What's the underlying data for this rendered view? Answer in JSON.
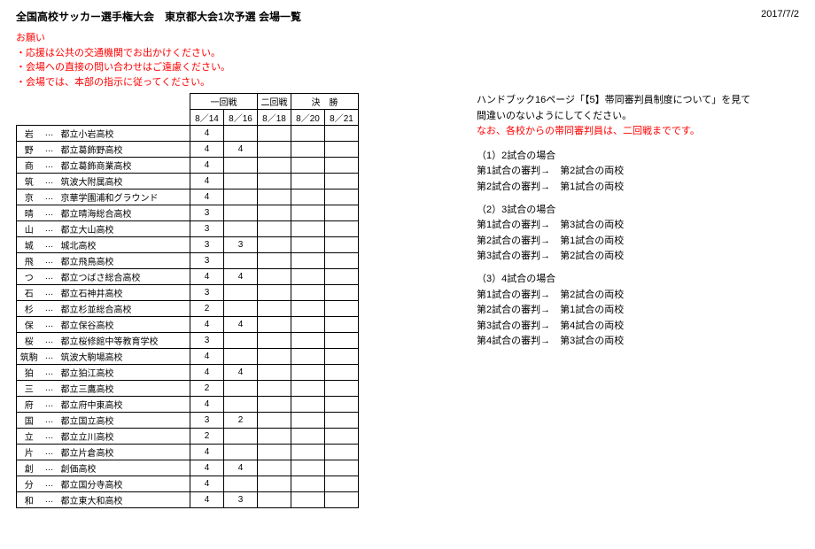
{
  "header": {
    "title": "全国高校サッカー選手権大会　東京都大会1次予選 会場一覧",
    "date": "2017/7/2"
  },
  "notices": {
    "heading": "お願い",
    "lines": [
      "・応援は公共の交通機関でお出かけください。",
      "・会場への直接の問い合わせはご遠慮ください。",
      "・会場では、本部の指示に従ってください。"
    ]
  },
  "table": {
    "rounds": [
      "一回戦",
      "二回戦",
      "決　勝"
    ],
    "dates": [
      "8／14",
      "8／16",
      "8／18",
      "8／20",
      "8／21"
    ],
    "rows": [
      {
        "code": "岩",
        "name": "都立小岩高校",
        "counts": [
          "4",
          "",
          "",
          "",
          ""
        ]
      },
      {
        "code": "野",
        "name": "都立葛飾野高校",
        "counts": [
          "4",
          "4",
          "",
          "",
          ""
        ]
      },
      {
        "code": "商",
        "name": "都立葛飾商業高校",
        "counts": [
          "4",
          "",
          "",
          "",
          ""
        ]
      },
      {
        "code": "筑",
        "name": "筑波大附属高校",
        "counts": [
          "4",
          "",
          "",
          "",
          ""
        ]
      },
      {
        "code": "京",
        "name": "京華学園浦和グラウンド",
        "counts": [
          "4",
          "",
          "",
          "",
          ""
        ]
      },
      {
        "code": "晴",
        "name": "都立晴海総合高校",
        "counts": [
          "3",
          "",
          "",
          "",
          ""
        ]
      },
      {
        "code": "山",
        "name": "都立大山高校",
        "counts": [
          "3",
          "",
          "",
          "",
          ""
        ]
      },
      {
        "code": "城",
        "name": "城北高校",
        "counts": [
          "3",
          "3",
          "",
          "",
          ""
        ]
      },
      {
        "code": "飛",
        "name": "都立飛鳥高校",
        "counts": [
          "3",
          "",
          "",
          "",
          ""
        ]
      },
      {
        "code": "つ",
        "name": "都立つばさ総合高校",
        "counts": [
          "4",
          "4",
          "",
          "",
          ""
        ]
      },
      {
        "code": "石",
        "name": "都立石神井高校",
        "counts": [
          "3",
          "",
          "",
          "",
          ""
        ]
      },
      {
        "code": "杉",
        "name": "都立杉並総合高校",
        "counts": [
          "2",
          "",
          "",
          "",
          ""
        ]
      },
      {
        "code": "保",
        "name": "都立保谷高校",
        "counts": [
          "4",
          "4",
          "",
          "",
          ""
        ]
      },
      {
        "code": "桜",
        "name": "都立桜修館中等教育学校",
        "counts": [
          "3",
          "",
          "",
          "",
          ""
        ]
      },
      {
        "code": "筑駒",
        "name": "筑波大駒場高校",
        "counts": [
          "4",
          "",
          "",
          "",
          ""
        ]
      },
      {
        "code": "狛",
        "name": "都立狛江高校",
        "counts": [
          "4",
          "4",
          "",
          "",
          ""
        ]
      },
      {
        "code": "三",
        "name": "都立三鷹高校",
        "counts": [
          "2",
          "",
          "",
          "",
          ""
        ]
      },
      {
        "code": "府",
        "name": "都立府中東高校",
        "counts": [
          "4",
          "",
          "",
          "",
          ""
        ]
      },
      {
        "code": "国",
        "name": "都立国立高校",
        "counts": [
          "3",
          "2",
          "",
          "",
          ""
        ]
      },
      {
        "code": "立",
        "name": "都立立川高校",
        "counts": [
          "2",
          "",
          "",
          "",
          ""
        ]
      },
      {
        "code": "片",
        "name": "都立片倉高校",
        "counts": [
          "4",
          "",
          "",
          "",
          ""
        ]
      },
      {
        "code": "創",
        "name": "創価高校",
        "counts": [
          "4",
          "4",
          "",
          "",
          ""
        ]
      },
      {
        "code": "分",
        "name": "都立国分寺高校",
        "counts": [
          "4",
          "",
          "",
          "",
          ""
        ]
      },
      {
        "code": "和",
        "name": "都立東大和高校",
        "counts": [
          "4",
          "3",
          "",
          "",
          ""
        ]
      }
    ],
    "dots": "…"
  },
  "right": {
    "handbook_l1": "ハンドブック16ページ「【5】帯同審判員制度について」を見て",
    "handbook_l2": "間違いのないようにしてください。",
    "handbook_red": "なお、各校からの帯同審判員は、二回戦までです。",
    "cases": [
      {
        "title": "（1）2試合の場合",
        "lines": [
          "第1試合の審判→　第2試合の両校",
          "第2試合の審判→　第1試合の両校"
        ]
      },
      {
        "title": "（2）3試合の場合",
        "lines": [
          "第1試合の審判→　第3試合の両校",
          "第2試合の審判→　第1試合の両校",
          "第3試合の審判→　第2試合の両校"
        ]
      },
      {
        "title": "（3）4試合の場合",
        "lines": [
          "第1試合の審判→　第2試合の両校",
          "第2試合の審判→　第1試合の両校",
          "第3試合の審判→　第4試合の両校",
          "第4試合の審判→　第3試合の両校"
        ]
      }
    ]
  }
}
